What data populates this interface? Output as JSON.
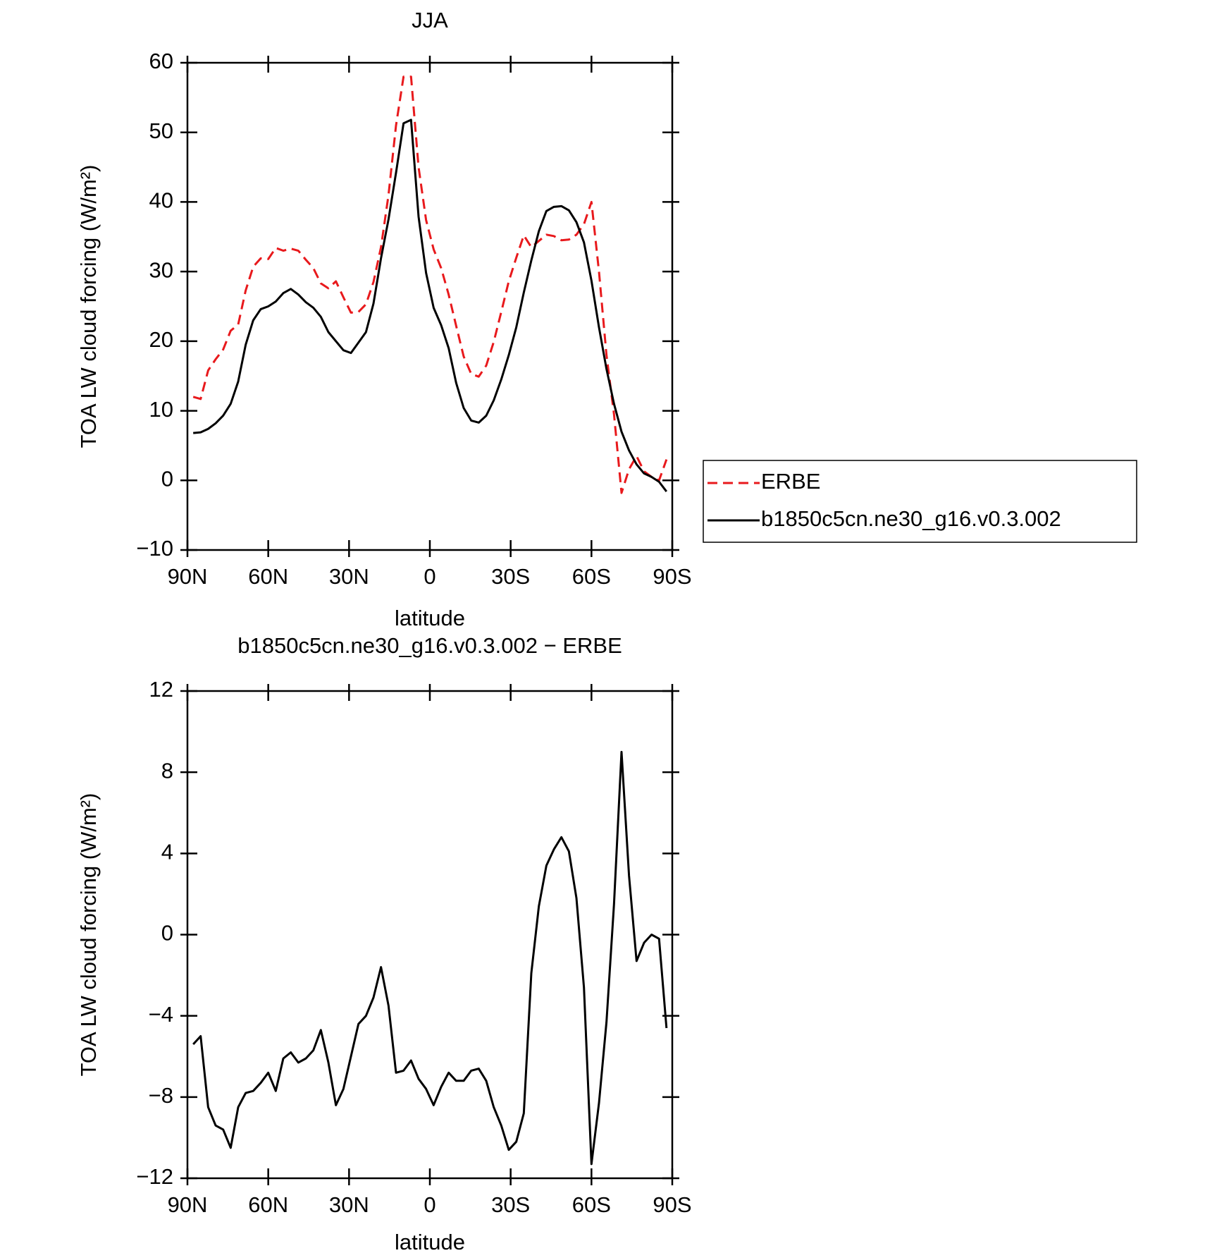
{
  "chart_data": [
    {
      "type": "line",
      "title": "JJA",
      "xlabel": "latitude",
      "ylabel": "TOA LW cloud forcing (W/m²)",
      "x": [
        87.86,
        85.1,
        82.31,
        79.53,
        76.74,
        73.95,
        71.16,
        68.37,
        65.58,
        62.79,
        60.0,
        57.21,
        54.42,
        51.63,
        48.84,
        46.05,
        43.26,
        40.47,
        37.67,
        34.88,
        32.09,
        29.3,
        26.51,
        23.72,
        20.93,
        18.14,
        15.35,
        12.56,
        9.77,
        6.98,
        4.19,
        1.4,
        -1.4,
        -4.19,
        -6.98,
        -9.77,
        -12.56,
        -15.35,
        -18.14,
        -20.93,
        -23.72,
        -26.51,
        -29.3,
        -32.09,
        -34.88,
        -37.67,
        -40.47,
        -43.26,
        -46.05,
        -48.84,
        -51.63,
        -54.42,
        -57.21,
        -60.0,
        -62.79,
        -65.58,
        -68.37,
        -71.16,
        -73.95,
        -76.74,
        -79.53,
        -82.31,
        -85.1,
        -87.86
      ],
      "series": [
        {
          "name": "ERBE",
          "color": "#e8191c",
          "style": "dashed",
          "values": [
            12,
            11.7,
            15.8,
            17.4,
            18.8,
            21.5,
            22.4,
            27.3,
            30.7,
            31.9,
            31.8,
            33.4,
            33,
            33.3,
            33,
            31.7,
            30.5,
            28.3,
            27.6,
            28.6,
            26.3,
            24.1,
            24.2,
            25.3,
            28.5,
            33.5,
            41,
            51,
            58,
            58,
            45,
            37.4,
            33.2,
            30.5,
            26.7,
            22.2,
            17.8,
            15.3,
            14.9,
            16.5,
            19.9,
            24.2,
            28.6,
            32,
            35.2,
            33.5,
            34.4,
            35.3,
            35.1,
            34.5,
            34.6,
            35.3,
            36.8,
            40,
            30,
            18,
            9.5,
            -1.8,
            1.6,
            3.5,
            1.3,
            0.5,
            0,
            3
          ]
        },
        {
          "name": "b1850c5cn.ne30_g16.v0.3.002",
          "color": "#000000",
          "style": "solid",
          "values": [
            6.8,
            6.9,
            7.4,
            8.2,
            9.3,
            11,
            14.2,
            19.5,
            23,
            24.6,
            25,
            25.7,
            26.9,
            27.5,
            26.7,
            25.6,
            24.8,
            23.5,
            21.3,
            20,
            18.7,
            18.3,
            19.8,
            21.3,
            25.4,
            31.9,
            37.5,
            44.2,
            51.3,
            51.8,
            37.9,
            29.8,
            24.8,
            22.3,
            19,
            14,
            10.4,
            8.6,
            8.3,
            9.3,
            11.5,
            14.5,
            18,
            22,
            27,
            31.6,
            35.8,
            38.7,
            39.3,
            39.4,
            38.8,
            37.1,
            34.2,
            28.7,
            22,
            16,
            11,
            7,
            4.3,
            2.3,
            1,
            0.5,
            -0.2,
            -1.6
          ]
        }
      ],
      "xlim": [
        90,
        -90
      ],
      "xticks": [
        {
          "value": 90,
          "label": "90N"
        },
        {
          "value": 60,
          "label": "60N"
        },
        {
          "value": 30,
          "label": "30N"
        },
        0,
        {
          "value": -30,
          "label": "30S"
        },
        {
          "value": -60,
          "label": "60S"
        },
        {
          "value": -90,
          "label": "90S"
        }
      ],
      "ylim": [
        -10,
        60
      ],
      "yticks": [
        {
          "value": -10,
          "label": "−10"
        },
        0,
        10,
        20,
        30,
        40,
        50,
        60
      ],
      "legend": "right"
    },
    {
      "type": "line",
      "title": "b1850c5cn.ne30_g16.v0.3.002 − ERBE",
      "xlabel": "latitude",
      "ylabel": "TOA LW cloud forcing (W/m²)",
      "x": [
        87.86,
        85.1,
        82.31,
        79.53,
        76.74,
        73.95,
        71.16,
        68.37,
        65.58,
        62.79,
        60.0,
        57.21,
        54.42,
        51.63,
        48.84,
        46.05,
        43.26,
        40.47,
        37.67,
        34.88,
        32.09,
        29.3,
        26.51,
        23.72,
        20.93,
        18.14,
        15.35,
        12.56,
        9.77,
        6.98,
        4.19,
        1.4,
        -1.4,
        -4.19,
        -6.98,
        -9.77,
        -12.56,
        -15.35,
        -18.14,
        -20.93,
        -23.72,
        -26.51,
        -29.3,
        -32.09,
        -34.88,
        -37.67,
        -40.47,
        -43.26,
        -46.05,
        -48.84,
        -51.63,
        -54.42,
        -57.21,
        -60.0,
        -62.79,
        -65.58,
        -68.37,
        -71.16,
        -73.95,
        -76.74,
        -79.53,
        -82.31,
        -85.1,
        -87.86
      ],
      "color": "#000000",
      "style": "solid",
      "values": [
        -5.4,
        -5,
        -8.5,
        -9.4,
        -9.6,
        -10.5,
        -8.5,
        -7.8,
        -7.7,
        -7.3,
        -6.8,
        -7.7,
        -6.1,
        -5.8,
        -6.3,
        -6.1,
        -5.7,
        -4.7,
        -6.3,
        -8.4,
        -7.6,
        -6,
        -4.4,
        -4,
        -3.1,
        -1.6,
        -3.5,
        -6.8,
        -6.7,
        -6.2,
        -7.1,
        -7.6,
        -8.4,
        -7.5,
        -6.8,
        -7.2,
        -7.2,
        -6.7,
        -6.6,
        -7.2,
        -8.5,
        -9.4,
        -10.6,
        -10.2,
        -8.8,
        -1.9,
        1.4,
        3.4,
        4.2,
        4.8,
        4.1,
        1.8,
        -2.6,
        -11.3,
        -8.3,
        -4.3,
        1.5,
        9,
        2.9,
        -1.3,
        -0.4,
        0,
        -0.2,
        -4.6
      ],
      "xlim": [
        90,
        -90
      ],
      "xticks": [
        {
          "value": 90,
          "label": "90N"
        },
        {
          "value": 60,
          "label": "60N"
        },
        {
          "value": 30,
          "label": "30N"
        },
        0,
        {
          "value": -30,
          "label": "30S"
        },
        {
          "value": -60,
          "label": "60S"
        },
        {
          "value": -90,
          "label": "90S"
        }
      ],
      "ylim": [
        -12,
        12
      ],
      "yticks": [
        {
          "value": -12,
          "label": "−12"
        },
        {
          "value": -8,
          "label": "−8"
        },
        {
          "value": -4,
          "label": "−4"
        },
        0,
        4,
        8,
        12
      ]
    }
  ]
}
